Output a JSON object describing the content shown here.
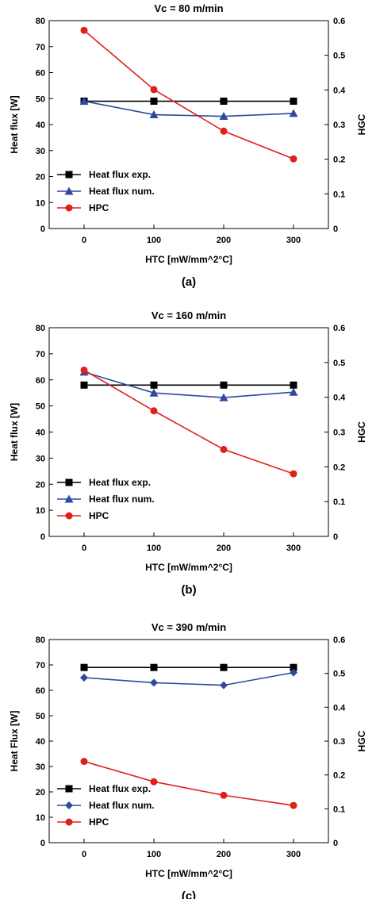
{
  "chart_data": [
    {
      "type": "line",
      "title": "Vc = 80 m/min",
      "panel_label": "(a)",
      "xlabel": "HTC [mW/mm^2°C]",
      "ylabel": "Heat flux [W]",
      "y2label": "HGC",
      "x": [
        0,
        100,
        200,
        300
      ],
      "xlim": [
        -50,
        350
      ],
      "xticks": [
        0,
        100,
        200,
        300
      ],
      "ylim": [
        0,
        80
      ],
      "yticks": [
        0,
        10,
        20,
        30,
        40,
        50,
        60,
        70,
        80
      ],
      "y2lim": [
        0,
        0.6
      ],
      "y2ticks": [
        "0",
        "0.1",
        "0.2",
        "0.3",
        "0.4",
        "0.5",
        "0.6"
      ],
      "legend_position": "lower-left",
      "grid": false,
      "series": [
        {
          "name": "Heat flux exp.",
          "axis": "left",
          "marker": "square",
          "color": "#000000",
          "values": [
            49,
            49,
            49,
            49
          ]
        },
        {
          "name": "Heat flux num.",
          "axis": "left",
          "marker": "triangle",
          "color": "#2e4a9e",
          "values": [
            49,
            43.8,
            43.2,
            44.3
          ]
        },
        {
          "name": "HPC",
          "axis": "right",
          "marker": "circle",
          "color": "#e0201b",
          "values": [
            0.572,
            0.401,
            0.281,
            0.201
          ]
        }
      ]
    },
    {
      "type": "line",
      "title": "Vc = 160 m/min",
      "panel_label": "(b)",
      "xlabel": "HTC [mW/mm^2°C]",
      "ylabel": "Heat flux [W]",
      "y2label": "HGC",
      "x": [
        0,
        100,
        200,
        300
      ],
      "xlim": [
        -50,
        350
      ],
      "xticks": [
        0,
        100,
        200,
        300
      ],
      "ylim": [
        0,
        80
      ],
      "yticks": [
        0,
        10,
        20,
        30,
        40,
        50,
        60,
        70,
        80
      ],
      "y2lim": [
        0,
        0.6
      ],
      "y2ticks": [
        "0",
        "0.1",
        "0.2",
        "0.3",
        "0.4",
        "0.5",
        "0.6"
      ],
      "legend_position": "lower-left",
      "grid": false,
      "series": [
        {
          "name": "Heat flux exp.",
          "axis": "left",
          "marker": "square",
          "color": "#000000",
          "values": [
            58,
            58,
            58,
            58
          ]
        },
        {
          "name": "Heat flux num.",
          "axis": "left",
          "marker": "triangle",
          "color": "#2e4a9e",
          "values": [
            63,
            55,
            53.2,
            55.3
          ]
        },
        {
          "name": "HPC",
          "axis": "right",
          "marker": "circle",
          "color": "#e0201b",
          "values": [
            0.478,
            0.361,
            0.25,
            0.18
          ]
        }
      ]
    },
    {
      "type": "line",
      "title": "Vc = 390 m/min",
      "panel_label": "(c)",
      "xlabel": "HTC [mW/mm^2°C]",
      "ylabel": "Heat Flux [W]",
      "y2label": "HGC",
      "x": [
        0,
        100,
        200,
        300
      ],
      "xlim": [
        -50,
        350
      ],
      "xticks": [
        0,
        100,
        200,
        300
      ],
      "ylim": [
        0,
        80
      ],
      "yticks": [
        0,
        10,
        20,
        30,
        40,
        50,
        60,
        70,
        80
      ],
      "y2lim": [
        0,
        0.6
      ],
      "y2ticks": [
        "0",
        "0.1",
        "0.2",
        "0.3",
        "0.4",
        "0.5",
        "0.6"
      ],
      "legend_position": "lower-left",
      "grid": false,
      "series": [
        {
          "name": "Heat flux exp.",
          "axis": "left",
          "marker": "square",
          "color": "#000000",
          "values": [
            69,
            69,
            69,
            69
          ]
        },
        {
          "name": "Heat flux num.",
          "axis": "left",
          "marker": "diamond",
          "color": "#2e4a9e",
          "values": [
            65,
            63,
            62,
            67
          ]
        },
        {
          "name": "HPC",
          "axis": "right",
          "marker": "circle",
          "color": "#e0201b",
          "values": [
            0.24,
            0.18,
            0.14,
            0.11
          ]
        }
      ]
    }
  ]
}
